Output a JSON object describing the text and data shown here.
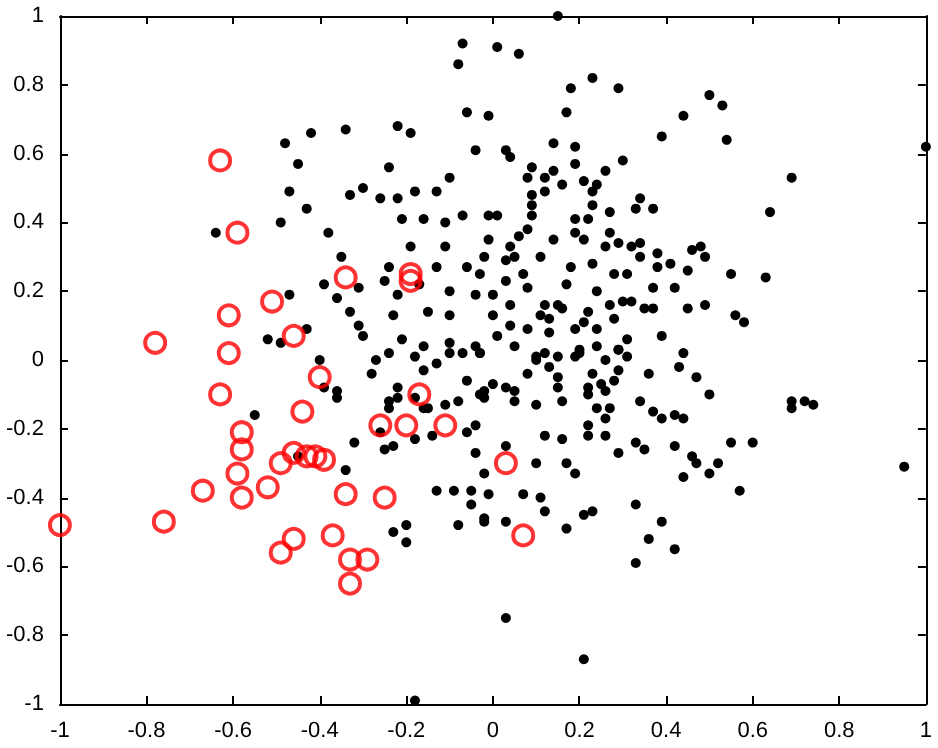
{
  "chart_data": {
    "type": "scatter",
    "xlim": [
      -1,
      1
    ],
    "ylim": [
      -1,
      1
    ],
    "xticks": [
      -1,
      -0.8,
      -0.6,
      -0.4,
      -0.2,
      0,
      0.2,
      0.4,
      0.6,
      0.8,
      1
    ],
    "yticks": [
      -1,
      -0.8,
      -0.6,
      -0.4,
      -0.2,
      0,
      0.2,
      0.4,
      0.6,
      0.8,
      1
    ],
    "grid": false,
    "marker": "circle",
    "series": [
      {
        "color": "#000000",
        "x": [
          -0.07,
          0.01,
          -0.08,
          -0.06,
          -0.01,
          -0.04,
          -0.34,
          -0.42,
          -0.22,
          -0.19,
          -0.48,
          -0.45,
          -0.24,
          -0.47,
          -0.33,
          -0.3,
          -0.26,
          -0.22,
          -0.18,
          -0.13,
          -0.1,
          -0.43,
          -0.49,
          -0.64,
          -0.38,
          -0.21,
          -0.16,
          -0.11,
          -0.07,
          -0.01,
          -0.19,
          -0.11,
          -0.35,
          -0.24,
          -0.13,
          -0.06,
          -0.39,
          -0.31,
          -0.25,
          -0.17,
          -0.1,
          -0.04,
          -0.36,
          -0.47,
          -0.22,
          -0.33,
          -0.23,
          -0.15,
          -0.1,
          -0.31,
          -0.43,
          -0.3,
          -0.21,
          -0.1,
          -0.04,
          -0.52,
          -0.49,
          -0.16,
          0.15,
          0.06,
          0.23,
          0.18,
          0.29,
          0.5,
          0.53,
          0.17,
          0.44,
          0.54,
          0.39,
          1.0,
          0.14,
          0.19,
          0.03,
          0.04,
          0.09,
          0.14,
          0.19,
          0.26,
          0.3,
          0.08,
          0.12,
          0.16,
          0.21,
          0.24,
          0.69,
          0.12,
          0.09,
          0.23,
          0.34,
          0.23,
          0.33,
          0.37,
          0.09,
          0.64,
          0.01,
          0.09,
          0.27,
          0.19,
          0.22,
          0.08,
          0.06,
          0.14,
          0.19,
          0.21,
          0.27,
          0.29,
          -0.01,
          0.04,
          0.26,
          0.32,
          0.34,
          0.38,
          0.41,
          0.46,
          0.48,
          0.49,
          -0.02,
          0.03,
          0.05,
          0.11,
          0.18,
          0.23,
          0.34,
          0.38,
          0.45,
          0.55,
          0.63,
          -0.03,
          0.03,
          0.07,
          0.17,
          0.28,
          0.31,
          0.24,
          0.37,
          0.42,
          0.0,
          0.08,
          0.04,
          0.12,
          0.15,
          0.27,
          0.3,
          0.32,
          0.49,
          0.45,
          0.0,
          0.11,
          0.16,
          0.22,
          0.35,
          0.37,
          0.56,
          0.58,
          0.04,
          0.08,
          0.13,
          0.21,
          0.24,
          0.28,
          0.31,
          0.39,
          0.44,
          0.01,
          0.05,
          0.13,
          0.19,
          0.24,
          0.29,
          -0.03,
          0.1,
          0.2,
          0.12,
          0.2,
          0.29,
          0.1,
          0.15,
          0.19,
          0.26,
          0.31,
          0.43,
          0.08,
          0.13,
          0.15,
          0.23,
          0.29,
          0.36,
          0.47,
          0.0,
          0.03,
          0.05,
          0.15,
          0.22,
          0.25,
          0.26,
          0.28,
          0.5,
          0.69,
          0.72,
          0.74,
          0.69,
          -0.02,
          0.05,
          0.1,
          0.16,
          0.22,
          0.24,
          0.27,
          0.34,
          0.37,
          0.39,
          0.42,
          0.44,
          0.12,
          0.16,
          0.22,
          0.26,
          0.22,
          0.26,
          0.33,
          0.35,
          0.42,
          0.55,
          0.6,
          0.03,
          0.1,
          0.17,
          0.19,
          0.29,
          0.46,
          0.47,
          0.44,
          0.5,
          0.52,
          0.57,
          0.95,
          -0.01,
          0.07,
          0.11,
          0.12,
          -0.02,
          0.03,
          0.17,
          0.21,
          0.23,
          0.33,
          0.36,
          0.39,
          0.42,
          0.33,
          0.03,
          0.21,
          -0.4,
          -0.39,
          -0.36,
          -0.36,
          -0.55,
          -0.28,
          -0.27,
          -0.24,
          -0.22,
          -0.18,
          -0.16,
          -0.13,
          -0.1,
          -0.07,
          -0.06,
          -0.03,
          -0.24,
          -0.22,
          -0.24,
          -0.18,
          -0.16,
          -0.15,
          -0.11,
          -0.08,
          -0.03,
          -0.02,
          -0.26,
          -0.25,
          -0.23,
          -0.32,
          -0.18,
          -0.14,
          -0.06,
          -0.04,
          -0.04,
          -0.34,
          -0.45,
          -0.02,
          -0.13,
          -0.09,
          -0.05,
          -0.02,
          -0.05,
          -0.08,
          -0.23,
          -0.2,
          -0.2,
          -0.18
        ],
        "values": [
          0.92,
          0.91,
          0.86,
          0.72,
          0.71,
          0.61,
          0.67,
          0.66,
          0.68,
          0.66,
          0.63,
          0.57,
          0.56,
          0.49,
          0.48,
          0.5,
          0.47,
          0.47,
          0.49,
          0.49,
          0.53,
          0.44,
          0.4,
          0.37,
          0.37,
          0.41,
          0.41,
          0.4,
          0.42,
          0.42,
          0.33,
          0.33,
          0.3,
          0.27,
          0.27,
          0.27,
          0.22,
          0.21,
          0.23,
          0.22,
          0.2,
          0.19,
          0.18,
          0.19,
          0.19,
          0.14,
          0.13,
          0.14,
          0.13,
          0.1,
          0.09,
          0.07,
          0.06,
          0.05,
          0.04,
          0.06,
          0.05,
          0.04,
          1.0,
          0.89,
          0.82,
          0.79,
          0.79,
          0.77,
          0.74,
          0.72,
          0.71,
          0.64,
          0.65,
          0.62,
          0.63,
          0.62,
          0.61,
          0.59,
          0.56,
          0.55,
          0.57,
          0.55,
          0.58,
          0.53,
          0.53,
          0.51,
          0.52,
          0.51,
          0.53,
          0.49,
          0.48,
          0.49,
          0.47,
          0.45,
          0.44,
          0.44,
          0.45,
          0.43,
          0.42,
          0.42,
          0.43,
          0.41,
          0.41,
          0.38,
          0.36,
          0.35,
          0.37,
          0.35,
          0.37,
          0.34,
          0.35,
          0.33,
          0.33,
          0.33,
          0.34,
          0.31,
          0.28,
          0.32,
          0.33,
          0.3,
          0.3,
          0.29,
          0.3,
          0.3,
          0.27,
          0.28,
          0.3,
          0.27,
          0.26,
          0.25,
          0.24,
          0.25,
          0.23,
          0.25,
          0.22,
          0.25,
          0.25,
          0.2,
          0.21,
          0.21,
          0.19,
          0.21,
          0.16,
          0.16,
          0.16,
          0.16,
          0.17,
          0.17,
          0.16,
          0.15,
          0.13,
          0.13,
          0.15,
          0.14,
          0.15,
          0.15,
          0.13,
          0.11,
          0.1,
          0.09,
          0.12,
          0.11,
          0.09,
          0.12,
          0.06,
          0.07,
          0.02,
          0.07,
          0.04,
          0.08,
          0.09,
          0.04,
          0.03,
          0.02,
          0.01,
          0.02,
          0.02,
          0.03,
          0.03,
          0.0,
          0.01,
          0.01,
          0.0,
          0.01,
          -0.02,
          -0.04,
          -0.02,
          -0.05,
          -0.04,
          -0.03,
          -0.04,
          -0.05,
          -0.07,
          -0.08,
          -0.09,
          -0.08,
          -0.08,
          -0.07,
          -0.09,
          -0.06,
          -0.1,
          -0.12,
          -0.12,
          -0.13,
          -0.14,
          -0.11,
          -0.12,
          -0.13,
          -0.12,
          -0.1,
          -0.14,
          -0.14,
          -0.12,
          -0.15,
          -0.17,
          -0.16,
          -0.17,
          -0.22,
          -0.23,
          -0.19,
          -0.17,
          -0.22,
          -0.22,
          -0.24,
          -0.26,
          -0.25,
          -0.24,
          -0.24,
          -0.25,
          -0.3,
          -0.3,
          -0.33,
          -0.27,
          -0.28,
          -0.3,
          -0.34,
          -0.33,
          -0.3,
          -0.38,
          -0.31,
          -0.39,
          -0.39,
          -0.4,
          -0.44,
          -0.47,
          -0.47,
          -0.49,
          -0.45,
          -0.44,
          -0.42,
          -0.52,
          -0.47,
          -0.55,
          -0.59,
          -0.75,
          -0.87,
          0.0,
          -0.08,
          -0.09,
          -0.11,
          -0.16,
          -0.04,
          0.0,
          0.02,
          -0.08,
          0.01,
          -0.03,
          -0.01,
          0.02,
          0.02,
          -0.06,
          0.02,
          -0.12,
          -0.11,
          -0.14,
          -0.11,
          -0.14,
          -0.14,
          -0.13,
          -0.12,
          -0.1,
          -0.09,
          -0.21,
          -0.26,
          -0.25,
          -0.24,
          -0.23,
          -0.22,
          -0.21,
          -0.19,
          -0.27,
          -0.32,
          -0.28,
          -0.33,
          -0.38,
          -0.38,
          -0.42,
          -0.46,
          -0.38,
          -0.48,
          -0.5,
          -0.48,
          -0.53,
          -0.99
        ]
      },
      {
        "color": "#ff0000",
        "x": [
          -0.63,
          -0.59,
          -0.51,
          -0.61,
          -0.46,
          -0.78,
          -0.61,
          -0.34,
          -0.19,
          -0.19,
          -0.63,
          -0.4,
          -0.44,
          -0.58,
          -0.58,
          -0.46,
          -0.43,
          -0.41,
          -0.39,
          -0.49,
          -0.59,
          -0.52,
          -0.67,
          -0.58,
          -0.34,
          -0.25,
          -0.76,
          -1.0,
          -0.46,
          -0.49,
          -0.37,
          -0.33,
          -0.29,
          -0.33,
          -0.26,
          -0.2,
          -0.17,
          -0.11,
          0.03,
          0.07
        ],
        "values": [
          0.58,
          0.37,
          0.17,
          0.13,
          0.07,
          0.05,
          0.02,
          0.24,
          0.25,
          0.23,
          -0.1,
          -0.05,
          -0.15,
          -0.21,
          -0.26,
          -0.27,
          -0.28,
          -0.28,
          -0.29,
          -0.3,
          -0.33,
          -0.37,
          -0.38,
          -0.4,
          -0.39,
          -0.4,
          -0.47,
          -0.48,
          -0.52,
          -0.56,
          -0.51,
          -0.58,
          -0.58,
          -0.65,
          -0.19,
          -0.19,
          -0.1,
          -0.19,
          -0.3,
          -0.51
        ]
      }
    ]
  }
}
